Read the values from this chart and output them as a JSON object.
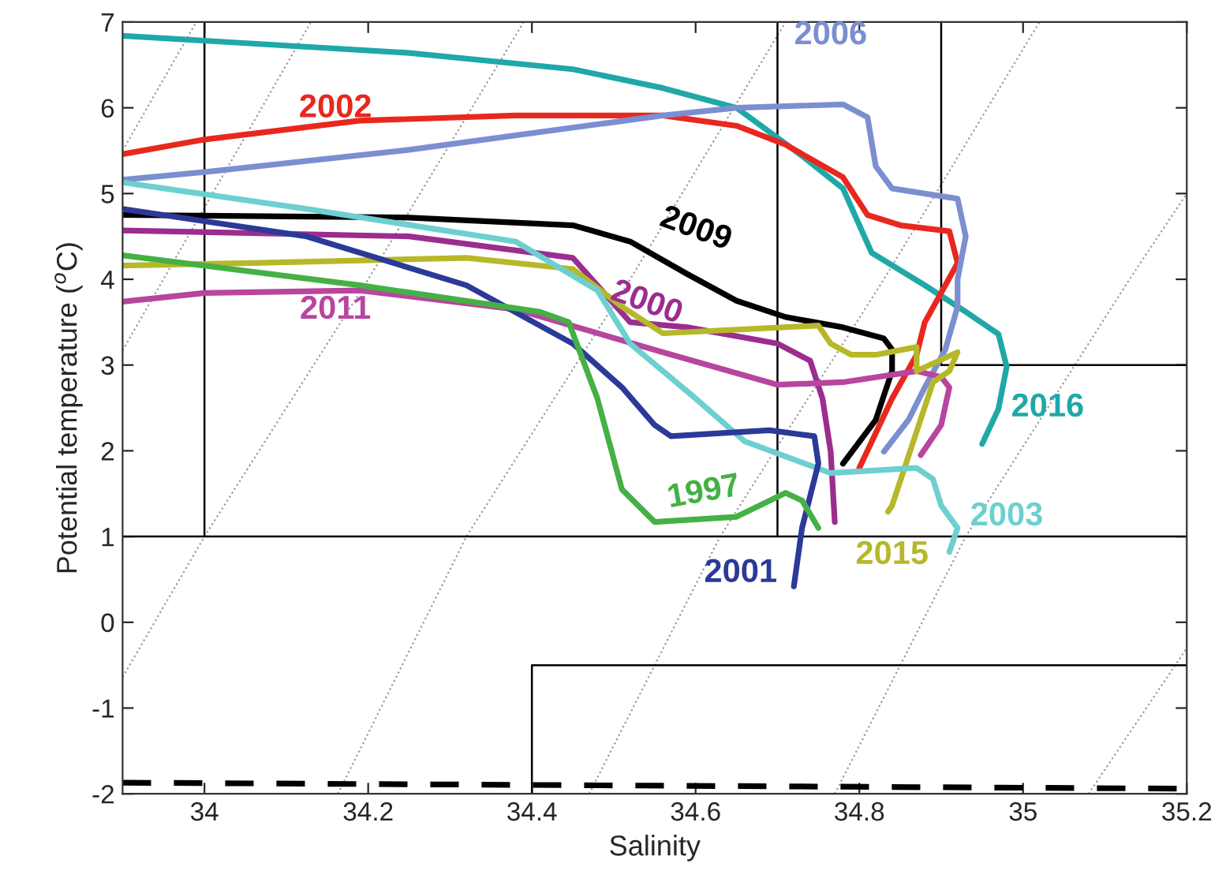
{
  "chart_data": {
    "type": "line",
    "xlabel": "Salinity",
    "ylabel": "Potential temperature ($^{o}$C)",
    "xlim": [
      33.9,
      35.2
    ],
    "ylim": [
      -2,
      7
    ],
    "xticks": [
      34,
      34.2,
      34.4,
      34.6,
      34.8,
      35,
      35.2
    ],
    "yticks": [
      -2,
      -1,
      0,
      1,
      2,
      3,
      4,
      5,
      6,
      7
    ],
    "grid": false,
    "legend": false,
    "marker": "none",
    "series": [
      {
        "color": "#9a9a9a",
        "line_style": "dotted",
        "x": [
          33.9,
          33.99
        ],
        "values": [
          5.5,
          7
        ]
      },
      {
        "color": "#9a9a9a",
        "line_style": "dotted",
        "x": [
          33.9,
          34.13
        ],
        "values": [
          3.17,
          7
        ]
      },
      {
        "color": "#9a9a9a",
        "line_style": "dotted",
        "x": [
          33.9,
          34.0,
          34.2,
          34.39
        ],
        "values": [
          -0.64,
          1.0,
          4.0,
          7
        ]
      },
      {
        "color": "#9a9a9a",
        "line_style": "dotted",
        "x": [
          34.163,
          34.32,
          34.52,
          34.71
        ],
        "values": [
          -2,
          1.0,
          4.0,
          7
        ]
      },
      {
        "color": "#9a9a9a",
        "line_style": "dotted",
        "x": [
          34.47,
          34.63,
          34.83,
          35.02
        ],
        "values": [
          -2,
          1.0,
          4.0,
          7
        ]
      },
      {
        "color": "#9a9a9a",
        "line_style": "dotted",
        "x": [
          34.77,
          34.93,
          35.13,
          35.2
        ],
        "values": [
          -2,
          1.0,
          4.0,
          5.0
        ]
      },
      {
        "color": "#9a9a9a",
        "line_style": "dotted",
        "x": [
          35.08,
          35.2
        ],
        "values": [
          -2,
          -0.3
        ]
      },
      {
        "color": "#000000",
        "line_style": "solid",
        "x": [
          34,
          34
        ],
        "values": [
          1,
          7
        ]
      },
      {
        "color": "#000000",
        "line_style": "solid",
        "x": [
          34.7,
          34.7
        ],
        "values": [
          1,
          7
        ]
      },
      {
        "color": "#000000",
        "line_style": "solid",
        "x": [
          34.9,
          34.9
        ],
        "values": [
          3,
          7
        ]
      },
      {
        "color": "#000000",
        "line_style": "solid",
        "x": [
          33.9,
          35.2
        ],
        "values": [
          1,
          1
        ]
      },
      {
        "color": "#000000",
        "line_style": "solid",
        "x": [
          34.9,
          35.2
        ],
        "values": [
          3,
          3
        ]
      },
      {
        "color": "#000000",
        "line_style": "solid",
        "x": [
          34.4,
          34.4,
          35.2
        ],
        "values": [
          -2,
          -0.5,
          -0.5
        ]
      },
      {
        "color": "#000000",
        "line_style": "dashed",
        "x": [
          33.9,
          35.2
        ],
        "values": [
          -1.87,
          -1.94
        ]
      },
      {
        "name": "2016",
        "color": "#20a8a8",
        "line_style": "solid",
        "x": [
          33.9,
          34.25,
          34.45,
          34.56,
          34.65,
          34.73,
          34.78,
          34.815,
          34.88,
          34.93,
          34.97,
          34.98,
          34.97,
          34.95
        ],
        "values": [
          6.84,
          6.64,
          6.45,
          6.23,
          6.0,
          5.44,
          5.06,
          4.31,
          3.93,
          3.62,
          3.36,
          2.98,
          2.49,
          2.08
        ]
      },
      {
        "name": "2002",
        "color": "#e8281e",
        "line_style": "solid",
        "x": [
          33.9,
          34.0,
          34.19,
          34.38,
          34.56,
          34.65,
          34.71,
          34.78,
          34.81,
          34.85,
          34.91,
          34.92,
          34.905,
          34.88,
          34.87,
          34.84,
          34.8
        ],
        "values": [
          5.46,
          5.63,
          5.85,
          5.91,
          5.91,
          5.79,
          5.57,
          5.19,
          4.75,
          4.63,
          4.56,
          4.19,
          3.93,
          3.5,
          3.12,
          2.61,
          1.8
        ]
      },
      {
        "name": "2006",
        "color": "#7b8fd0",
        "line_style": "solid",
        "x": [
          33.9,
          34.0,
          34.25,
          34.56,
          34.65,
          34.78,
          34.81,
          34.82,
          34.84,
          34.92,
          34.93,
          34.92,
          34.92,
          34.905,
          34.88,
          34.86,
          34.83
        ],
        "values": [
          5.16,
          5.25,
          5.51,
          5.91,
          6.0,
          6.04,
          5.89,
          5.32,
          5.06,
          4.94,
          4.5,
          4.0,
          3.68,
          3.18,
          2.74,
          2.36,
          1.99
        ]
      },
      {
        "name": "2009",
        "color": "#000000",
        "line_style": "solid",
        "x": [
          33.9,
          34.25,
          34.45,
          34.52,
          34.59,
          34.65,
          34.71,
          34.78,
          34.83,
          34.84,
          34.84,
          34.82,
          34.78
        ],
        "values": [
          4.75,
          4.72,
          4.63,
          4.44,
          4.06,
          3.75,
          3.56,
          3.44,
          3.31,
          3.18,
          2.93,
          2.36,
          1.85
        ]
      },
      {
        "name": "2000",
        "color": "#9b2d8f",
        "line_style": "solid",
        "x": [
          33.9,
          34.25,
          34.45,
          34.52,
          34.59,
          34.7,
          34.74,
          34.755,
          34.765,
          34.77
        ],
        "values": [
          4.57,
          4.5,
          4.25,
          3.5,
          3.44,
          3.25,
          3.05,
          2.61,
          1.99,
          1.17
        ]
      },
      {
        "name": "2011",
        "color": "#b8459e",
        "line_style": "solid",
        "x": [
          33.9,
          34.0,
          34.19,
          34.38,
          34.56,
          34.7,
          34.78,
          34.87,
          34.9,
          34.91,
          34.9,
          34.875
        ],
        "values": [
          3.74,
          3.84,
          3.87,
          3.65,
          3.15,
          2.77,
          2.8,
          2.93,
          2.86,
          2.74,
          2.3,
          1.95
        ]
      },
      {
        "name": "2015",
        "color": "#b6b82a",
        "line_style": "solid",
        "x": [
          33.9,
          34.06,
          34.32,
          34.45,
          34.51,
          34.56,
          34.75,
          34.765,
          34.79,
          34.82,
          34.87,
          34.87,
          34.92,
          34.91,
          34.89,
          34.84,
          34.835
        ],
        "values": [
          4.16,
          4.19,
          4.25,
          4.12,
          3.68,
          3.37,
          3.46,
          3.25,
          3.12,
          3.12,
          3.21,
          2.93,
          3.15,
          2.93,
          2.8,
          1.36,
          1.29
        ]
      },
      {
        "name": "2003",
        "color": "#6ecfd0",
        "line_style": "solid",
        "x": [
          33.9,
          34.125,
          34.38,
          34.48,
          34.52,
          34.6,
          34.66,
          34.765,
          34.87,
          34.89,
          34.9,
          34.92,
          34.91
        ],
        "values": [
          5.13,
          4.82,
          4.44,
          3.87,
          3.25,
          2.61,
          2.11,
          1.74,
          1.8,
          1.67,
          1.36,
          1.1,
          0.82
        ]
      },
      {
        "name": "2001",
        "color": "#2b3a98",
        "line_style": "solid",
        "x": [
          33.9,
          34.125,
          34.32,
          34.45,
          34.51,
          34.55,
          34.57,
          34.69,
          34.745,
          34.75,
          34.73,
          34.72
        ],
        "values": [
          4.82,
          4.5,
          3.93,
          3.25,
          2.74,
          2.3,
          2.17,
          2.24,
          2.17,
          1.85,
          1.1,
          0.42
        ]
      },
      {
        "name": "1997",
        "color": "#45b045",
        "line_style": "solid",
        "x": [
          33.9,
          34.19,
          34.41,
          34.445,
          34.48,
          34.51,
          34.55,
          34.65,
          34.71,
          34.73,
          34.75
        ],
        "values": [
          4.28,
          3.93,
          3.62,
          3.5,
          2.61,
          1.55,
          1.17,
          1.23,
          1.51,
          1.42,
          1.1
        ]
      }
    ]
  }
}
